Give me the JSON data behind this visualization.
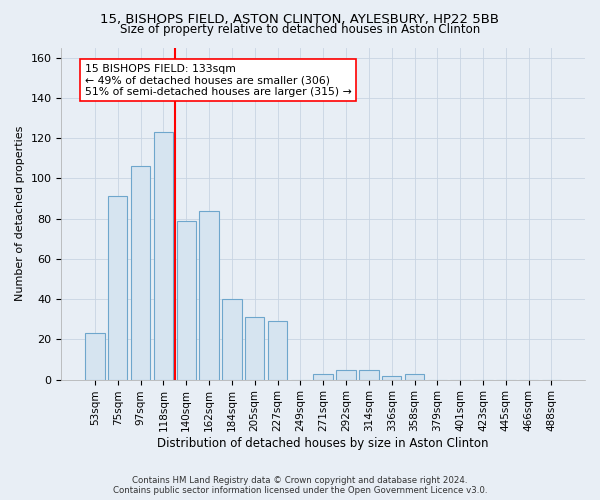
{
  "title_line1": "15, BISHOPS FIELD, ASTON CLINTON, AYLESBURY, HP22 5BB",
  "title_line2": "Size of property relative to detached houses in Aston Clinton",
  "xlabel": "Distribution of detached houses by size in Aston Clinton",
  "ylabel": "Number of detached properties",
  "bar_labels": [
    "53sqm",
    "75sqm",
    "97sqm",
    "118sqm",
    "140sqm",
    "162sqm",
    "184sqm",
    "205sqm",
    "227sqm",
    "249sqm",
    "271sqm",
    "292sqm",
    "314sqm",
    "336sqm",
    "358sqm",
    "379sqm",
    "401sqm",
    "423sqm",
    "445sqm",
    "466sqm",
    "488sqm"
  ],
  "bar_values": [
    23,
    91,
    106,
    123,
    79,
    84,
    40,
    31,
    29,
    0,
    3,
    5,
    5,
    2,
    3,
    0,
    0,
    0,
    0,
    0,
    0
  ],
  "bar_color": "#d6e4f0",
  "bar_edge_color": "#6ea6cc",
  "bar_edge_width": 0.8,
  "vline_x": 3.5,
  "vline_color": "red",
  "vline_lw": 1.5,
  "annotation_line1": "15 BISHOPS FIELD: 133sqm",
  "annotation_line2": "← 49% of detached houses are smaller (306)",
  "annotation_line3": "51% of semi-detached houses are larger (315) →",
  "annotation_box_color": "white",
  "annotation_box_edge": "red",
  "ylim": [
    0,
    165
  ],
  "yticks": [
    0,
    20,
    40,
    60,
    80,
    100,
    120,
    140,
    160
  ],
  "grid_color": "#c8d4e3",
  "bg_color": "#e8eef5",
  "footer1": "Contains HM Land Registry data © Crown copyright and database right 2024.",
  "footer2": "Contains public sector information licensed under the Open Government Licence v3.0."
}
